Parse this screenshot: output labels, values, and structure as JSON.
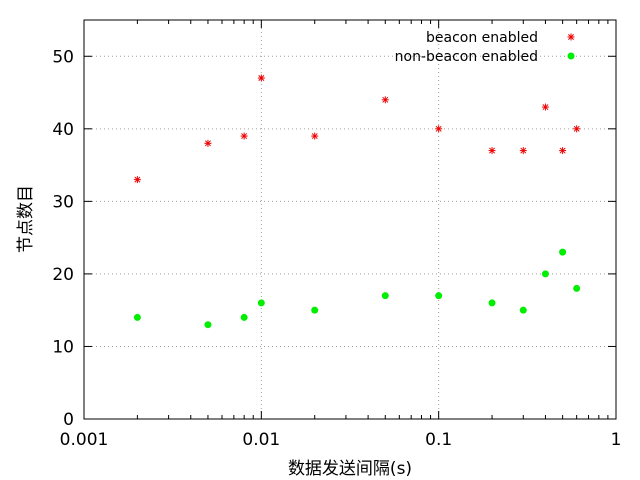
{
  "chart_data": {
    "type": "scatter",
    "title": "",
    "xlabel": "数据发送间隔(s)",
    "ylabel": "节点数目",
    "xscale": "log",
    "xlim": [
      0.001,
      1
    ],
    "ylim": [
      0,
      55
    ],
    "xticks": [
      {
        "value": 0.001,
        "label": "0.001"
      },
      {
        "value": 0.01,
        "label": "0.01"
      },
      {
        "value": 0.1,
        "label": "0.1"
      },
      {
        "value": 1,
        "label": "1"
      }
    ],
    "yticks": [
      {
        "value": 0,
        "label": "0"
      },
      {
        "value": 10,
        "label": "10"
      },
      {
        "value": 20,
        "label": "20"
      },
      {
        "value": 30,
        "label": "30"
      },
      {
        "value": 40,
        "label": "40"
      },
      {
        "value": 50,
        "label": "50"
      }
    ],
    "grid": true,
    "legend_position": "top-right",
    "series": [
      {
        "name": "beacon enabled",
        "marker": "asterisk",
        "color": "#ee0000",
        "x": [
          0.002,
          0.005,
          0.008,
          0.01,
          0.02,
          0.05,
          0.1,
          0.2,
          0.3,
          0.4,
          0.5,
          0.6
        ],
        "y": [
          33,
          38,
          39,
          47,
          39,
          44,
          40,
          37,
          37,
          43,
          37,
          40
        ]
      },
      {
        "name": "non-beacon enabled",
        "marker": "circle",
        "color": "#00ee00",
        "x": [
          0.002,
          0.005,
          0.008,
          0.01,
          0.02,
          0.05,
          0.1,
          0.2,
          0.3,
          0.4,
          0.5,
          0.6
        ],
        "y": [
          14,
          13,
          14,
          16,
          15,
          17,
          17,
          16,
          15,
          20,
          23,
          18
        ]
      }
    ]
  }
}
